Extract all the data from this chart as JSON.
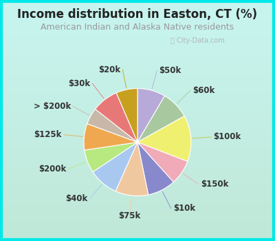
{
  "title": "Income distribution in Easton, CT (%)",
  "subtitle": "American Indian and Alaska Native residents",
  "background_color_top": "#c8f5f0",
  "background_color_bottom": "#c0e8d8",
  "border_color": "#00e0e0",
  "labels": [
    "$50k",
    "$60k",
    "$100k",
    "$150k",
    "$10k",
    "$75k",
    "$40k",
    "$200k",
    "$125k",
    "> $200k",
    "$30k",
    "$20k"
  ],
  "sizes": [
    8.5,
    8.5,
    14.0,
    7.5,
    8.5,
    10.0,
    9.0,
    7.0,
    8.0,
    5.0,
    8.0,
    6.5
  ],
  "colors": [
    "#b8aad8",
    "#a8c8a0",
    "#f0f070",
    "#f0aab8",
    "#8888cc",
    "#f0c8a0",
    "#a8c8f0",
    "#b8e880",
    "#f0a850",
    "#c8b8a8",
    "#e87878",
    "#c8a020"
  ],
  "watermark": "City-Data.com",
  "label_fontsize": 8.5,
  "title_fontsize": 12,
  "subtitle_fontsize": 9,
  "title_color": "#222222",
  "subtitle_color": "#999999",
  "label_color": "#333333"
}
